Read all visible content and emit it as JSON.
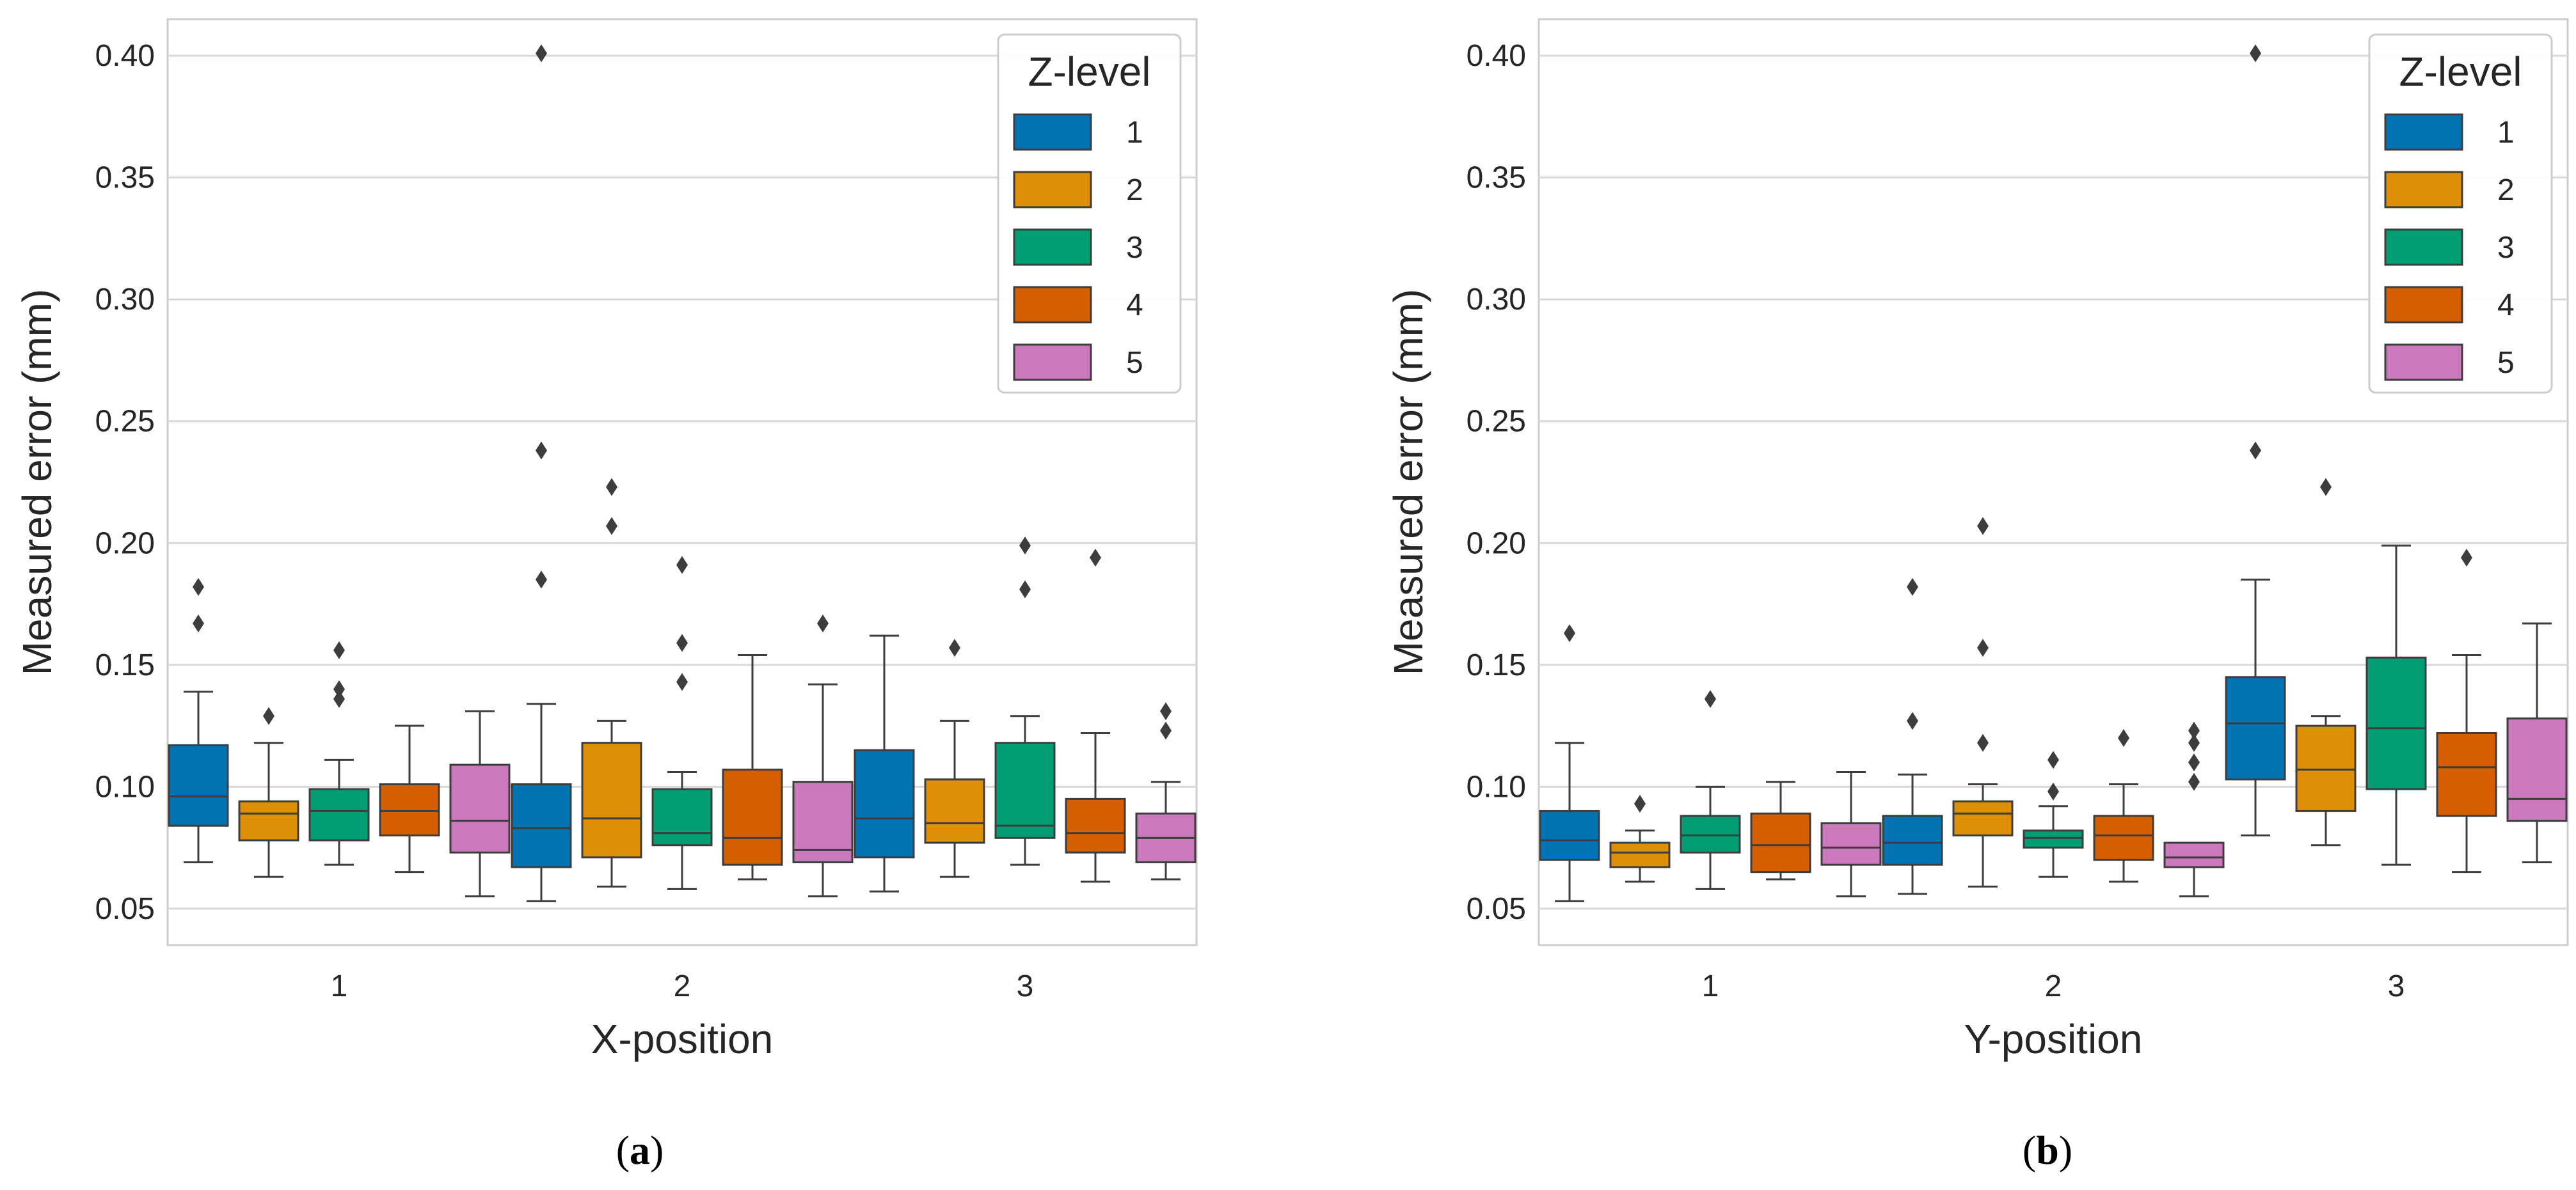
{
  "chart_data": [
    {
      "type": "box",
      "panel_label": "(a)",
      "panel_letter": "a",
      "xlabel": "X-position",
      "ylabel": "Measured error (mm)",
      "categories": [
        "1",
        "2",
        "3"
      ],
      "ylim": [
        0.035,
        0.415
      ],
      "yticks": [
        0.05,
        0.1,
        0.15,
        0.2,
        0.25,
        0.3,
        0.35,
        0.4
      ],
      "ytick_labels": [
        "0.05",
        "0.10",
        "0.15",
        "0.20",
        "0.25",
        "0.30",
        "0.35",
        "0.40"
      ],
      "grid": true,
      "legend": {
        "title": "Z-level",
        "position": "top-right",
        "entries": [
          "1",
          "2",
          "3",
          "4",
          "5"
        ]
      },
      "series": [
        {
          "name": "1",
          "color": "#0173b2",
          "boxes": [
            {
              "whislo": 0.069,
              "q1": 0.084,
              "med": 0.096,
              "q3": 0.117,
              "whishi": 0.139,
              "fliers": [
                0.167,
                0.182
              ]
            },
            {
              "whislo": 0.053,
              "q1": 0.067,
              "med": 0.083,
              "q3": 0.101,
              "whishi": 0.134,
              "fliers": [
                0.185,
                0.238,
                0.401
              ]
            },
            {
              "whislo": 0.057,
              "q1": 0.071,
              "med": 0.087,
              "q3": 0.115,
              "whishi": 0.162,
              "fliers": []
            }
          ]
        },
        {
          "name": "2",
          "color": "#de8f05",
          "boxes": [
            {
              "whislo": 0.063,
              "q1": 0.078,
              "med": 0.089,
              "q3": 0.094,
              "whishi": 0.118,
              "fliers": [
                0.129
              ]
            },
            {
              "whislo": 0.059,
              "q1": 0.071,
              "med": 0.087,
              "q3": 0.118,
              "whishi": 0.127,
              "fliers": [
                0.207,
                0.223
              ]
            },
            {
              "whislo": 0.063,
              "q1": 0.077,
              "med": 0.085,
              "q3": 0.103,
              "whishi": 0.127,
              "fliers": [
                0.157
              ]
            }
          ]
        },
        {
          "name": "3",
          "color": "#029e73",
          "boxes": [
            {
              "whislo": 0.068,
              "q1": 0.078,
              "med": 0.09,
              "q3": 0.099,
              "whishi": 0.111,
              "fliers": [
                0.136,
                0.14,
                0.156
              ]
            },
            {
              "whislo": 0.058,
              "q1": 0.076,
              "med": 0.081,
              "q3": 0.099,
              "whishi": 0.106,
              "fliers": [
                0.143,
                0.159,
                0.191
              ]
            },
            {
              "whislo": 0.068,
              "q1": 0.079,
              "med": 0.084,
              "q3": 0.118,
              "whishi": 0.129,
              "fliers": [
                0.181,
                0.199
              ]
            }
          ]
        },
        {
          "name": "4",
          "color": "#d55e00",
          "boxes": [
            {
              "whislo": 0.065,
              "q1": 0.08,
              "med": 0.09,
              "q3": 0.101,
              "whishi": 0.125,
              "fliers": []
            },
            {
              "whislo": 0.062,
              "q1": 0.068,
              "med": 0.079,
              "q3": 0.107,
              "whishi": 0.154,
              "fliers": []
            },
            {
              "whislo": 0.061,
              "q1": 0.073,
              "med": 0.081,
              "q3": 0.095,
              "whishi": 0.122,
              "fliers": [
                0.194
              ]
            }
          ]
        },
        {
          "name": "5",
          "color": "#cc78bc",
          "boxes": [
            {
              "whislo": 0.055,
              "q1": 0.073,
              "med": 0.086,
              "q3": 0.109,
              "whishi": 0.131,
              "fliers": []
            },
            {
              "whislo": 0.055,
              "q1": 0.069,
              "med": 0.074,
              "q3": 0.102,
              "whishi": 0.142,
              "fliers": [
                0.167
              ]
            },
            {
              "whislo": 0.062,
              "q1": 0.069,
              "med": 0.079,
              "q3": 0.089,
              "whishi": 0.102,
              "fliers": [
                0.123,
                0.131
              ]
            }
          ]
        }
      ]
    },
    {
      "type": "box",
      "panel_label": "(b)",
      "panel_letter": "b",
      "xlabel": "Y-position",
      "ylabel": "Measured error (mm)",
      "categories": [
        "1",
        "2",
        "3"
      ],
      "ylim": [
        0.035,
        0.415
      ],
      "yticks": [
        0.05,
        0.1,
        0.15,
        0.2,
        0.25,
        0.3,
        0.35,
        0.4
      ],
      "ytick_labels": [
        "0.05",
        "0.10",
        "0.15",
        "0.20",
        "0.25",
        "0.30",
        "0.35",
        "0.40"
      ],
      "grid": true,
      "legend": {
        "title": "Z-level",
        "position": "top-right",
        "entries": [
          "1",
          "2",
          "3",
          "4",
          "5"
        ]
      },
      "series": [
        {
          "name": "1",
          "color": "#0173b2",
          "boxes": [
            {
              "whislo": 0.053,
              "q1": 0.07,
              "med": 0.078,
              "q3": 0.09,
              "whishi": 0.118,
              "fliers": [
                0.163
              ]
            },
            {
              "whislo": 0.056,
              "q1": 0.068,
              "med": 0.077,
              "q3": 0.088,
              "whishi": 0.105,
              "fliers": [
                0.127,
                0.182
              ]
            },
            {
              "whislo": 0.08,
              "q1": 0.103,
              "med": 0.126,
              "q3": 0.145,
              "whishi": 0.185,
              "fliers": [
                0.238,
                0.401
              ]
            }
          ]
        },
        {
          "name": "2",
          "color": "#de8f05",
          "boxes": [
            {
              "whislo": 0.061,
              "q1": 0.067,
              "med": 0.073,
              "q3": 0.077,
              "whishi": 0.082,
              "fliers": [
                0.093
              ]
            },
            {
              "whislo": 0.059,
              "q1": 0.08,
              "med": 0.089,
              "q3": 0.094,
              "whishi": 0.101,
              "fliers": [
                0.118,
                0.157,
                0.207
              ]
            },
            {
              "whislo": 0.076,
              "q1": 0.09,
              "med": 0.107,
              "q3": 0.125,
              "whishi": 0.129,
              "fliers": [
                0.223
              ]
            }
          ]
        },
        {
          "name": "3",
          "color": "#029e73",
          "boxes": [
            {
              "whislo": 0.058,
              "q1": 0.073,
              "med": 0.08,
              "q3": 0.088,
              "whishi": 0.1,
              "fliers": [
                0.136
              ]
            },
            {
              "whislo": 0.063,
              "q1": 0.075,
              "med": 0.079,
              "q3": 0.082,
              "whishi": 0.092,
              "fliers": [
                0.098,
                0.111
              ]
            },
            {
              "whislo": 0.068,
              "q1": 0.099,
              "med": 0.124,
              "q3": 0.153,
              "whishi": 0.199,
              "fliers": []
            }
          ]
        },
        {
          "name": "4",
          "color": "#d55e00",
          "boxes": [
            {
              "whislo": 0.062,
              "q1": 0.065,
              "med": 0.076,
              "q3": 0.089,
              "whishi": 0.102,
              "fliers": []
            },
            {
              "whislo": 0.061,
              "q1": 0.07,
              "med": 0.08,
              "q3": 0.088,
              "whishi": 0.101,
              "fliers": [
                0.12
              ]
            },
            {
              "whislo": 0.065,
              "q1": 0.088,
              "med": 0.108,
              "q3": 0.122,
              "whishi": 0.154,
              "fliers": [
                0.194
              ]
            }
          ]
        },
        {
          "name": "5",
          "color": "#cc78bc",
          "boxes": [
            {
              "whislo": 0.055,
              "q1": 0.068,
              "med": 0.075,
              "q3": 0.085,
              "whishi": 0.106,
              "fliers": []
            },
            {
              "whislo": 0.055,
              "q1": 0.067,
              "med": 0.071,
              "q3": 0.077,
              "whishi": 0.077,
              "fliers": [
                0.102,
                0.11,
                0.118,
                0.123
              ]
            },
            {
              "whislo": 0.069,
              "q1": 0.086,
              "med": 0.095,
              "q3": 0.128,
              "whishi": 0.167,
              "fliers": []
            }
          ]
        }
      ]
    }
  ]
}
